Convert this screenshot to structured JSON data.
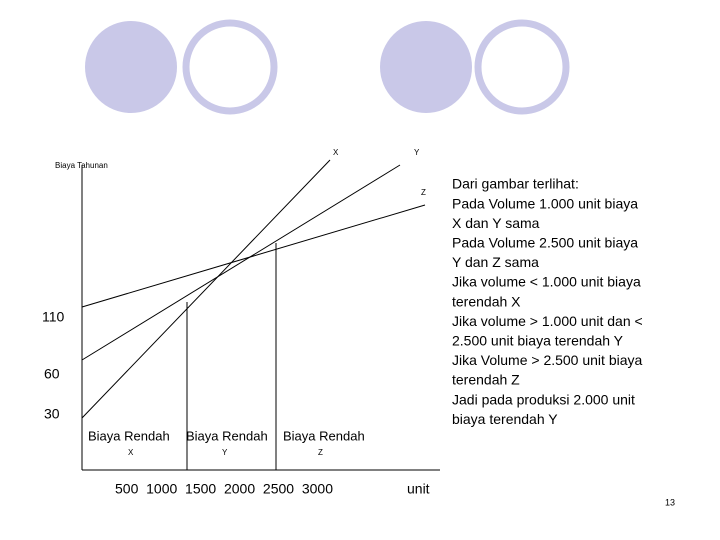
{
  "diagram": {
    "y_label": "Biaya Tahunan",
    "curve_labels": [
      "X",
      "Y",
      "Z"
    ],
    "y_values": [
      "110",
      "60",
      "30"
    ],
    "low_cost": [
      {
        "label": "Biaya Rendah",
        "name": "X"
      },
      {
        "label": "Biaya Rendah",
        "name": "Y"
      },
      {
        "label": "Biaya Rendah",
        "name": "Z"
      }
    ],
    "x_values": "500  1000  1500  2000  2500  3000",
    "x_unit": "unit"
  },
  "notes": [
    "Dari gambar terlihat:",
    "Pada Volume 1.000 unit biaya",
    "X dan Y sama",
    "Pada Volume 2.500 unit biaya",
    "Y dan Z sama",
    "Jika volume < 1.000 unit biaya",
    "terendah X",
    "Jika volume > 1.000 unit dan <",
    "2.500 unit biaya terendah Y",
    "Jika Volume > 2.500 unit biaya",
    "terendah Z",
    "Jadi pada produksi 2.000 unit",
    "biaya terendah Y"
  ],
  "page_number": "13"
}
